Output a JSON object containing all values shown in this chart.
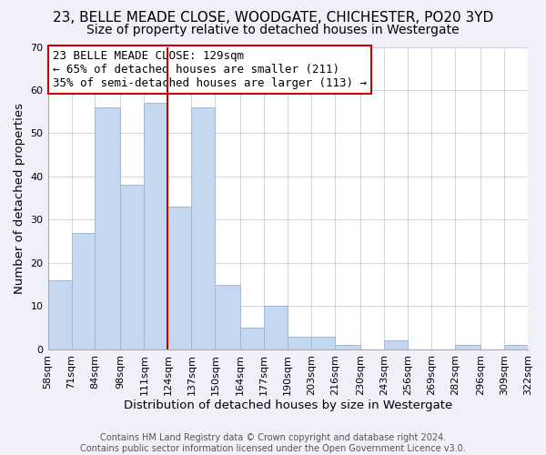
{
  "title": "23, BELLE MEADE CLOSE, WOODGATE, CHICHESTER, PO20 3YD",
  "subtitle": "Size of property relative to detached houses in Westergate",
  "xlabel": "Distribution of detached houses by size in Westergate",
  "ylabel": "Number of detached properties",
  "footer_line1": "Contains HM Land Registry data © Crown copyright and database right 2024.",
  "footer_line2": "Contains public sector information licensed under the Open Government Licence v3.0.",
  "annotation_line1": "23 BELLE MEADE CLOSE: 129sqm",
  "annotation_line2": "← 65% of detached houses are smaller (211)",
  "annotation_line3": "35% of semi-detached houses are larger (113) →",
  "bar_color": "#c5d8f0",
  "bar_edge_color": "#a0b8d8",
  "ref_line_color": "#cc0000",
  "ref_line_x": 124,
  "bin_edges": [
    58,
    71,
    84,
    98,
    111,
    124,
    137,
    150,
    164,
    177,
    190,
    203,
    216,
    230,
    243,
    256,
    269,
    282,
    296,
    309,
    322
  ],
  "bar_heights": [
    16,
    27,
    56,
    38,
    57,
    33,
    56,
    15,
    5,
    10,
    3,
    3,
    1,
    0,
    2,
    0,
    0,
    1,
    0,
    1
  ],
  "ylim": [
    0,
    70
  ],
  "yticks": [
    0,
    10,
    20,
    30,
    40,
    50,
    60,
    70
  ],
  "background_color": "#f0f0f8",
  "plot_bg_color": "#ffffff",
  "title_fontsize": 11,
  "subtitle_fontsize": 10,
  "axis_label_fontsize": 9.5,
  "tick_fontsize": 8,
  "annotation_fontsize": 9,
  "footer_fontsize": 7,
  "annotation_box_color": "#ffffff",
  "annotation_box_edge": "#cc0000"
}
